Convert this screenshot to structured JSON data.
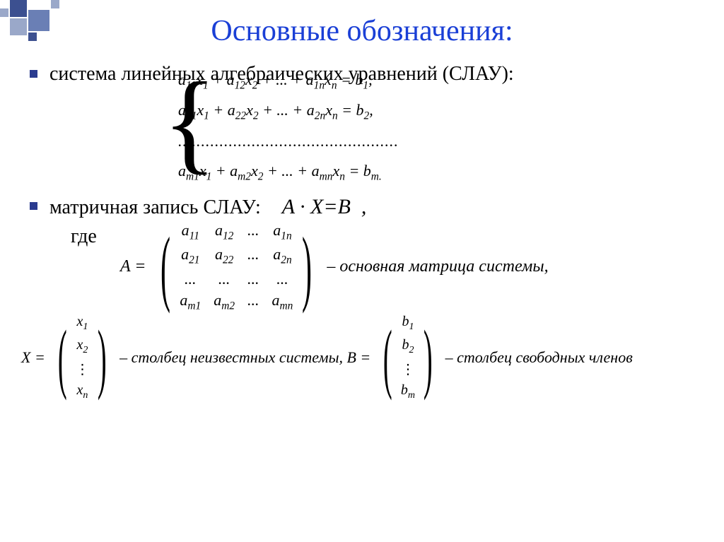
{
  "colors": {
    "title": "#1a3fd6",
    "bullet": "#2a3b8f",
    "deco1": "#9aa8c9",
    "deco2": "#6a7fb5",
    "deco3": "#3c5090"
  },
  "title": "Основные обозначения:",
  "bullet1": "система линейных алгебраических уравнений (СЛАУ):",
  "system": {
    "r1": "a₁₁x₁ + a₁₂x₂ + ... + a₁ₙxₙ = b₁,",
    "r2": "a₂₁x₁ + a₂₂x₂ + ... + a₂ₙxₙ = b₂,",
    "r3": "................................................",
    "r4": "aₘ₁x₁ + aₘ₂x₂ + ... + aₘₙxₙ = bₘ."
  },
  "bullet2_label": "матричная запись СЛАУ:",
  "bullet2_eq": "A · X = B  ,",
  "where": "где",
  "A_prefix": "A =",
  "A_matrix": [
    [
      "a₁₁",
      "a₁₂",
      "...",
      "a₁ₙ"
    ],
    [
      "a₂₁",
      "a₂₂",
      "...",
      "a₂ₙ"
    ],
    [
      "...",
      "...",
      "...",
      "..."
    ],
    [
      "aₘ₁",
      "aₘ₂",
      "...",
      "aₘₙ"
    ]
  ],
  "A_desc": "– основная матрица системы,",
  "X_prefix": "X =",
  "X_vec": [
    "x₁",
    "x₂",
    "⋮",
    "xₙ"
  ],
  "X_desc": "– столбец неизвестных системы,  B =",
  "B_vec": [
    "b₁",
    "b₂",
    "⋮",
    "bₘ"
  ],
  "B_desc": "– столбец свободных членов"
}
